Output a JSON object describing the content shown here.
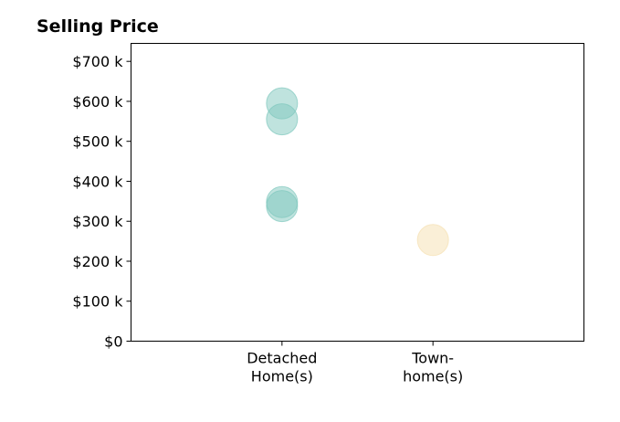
{
  "chart_data": {
    "type": "scatter",
    "title": "Selling Price",
    "xlabel": "",
    "ylabel": "",
    "categories": [
      {
        "lines": [
          "Detached",
          "Home(s)"
        ]
      },
      {
        "lines": [
          "Town-",
          "home(s)"
        ]
      }
    ],
    "xlim": [
      -1,
      2
    ],
    "ylim": [
      0,
      745000
    ],
    "yticks": [
      {
        "value": 0,
        "label": "$0"
      },
      {
        "value": 100000,
        "label": "$100 k"
      },
      {
        "value": 200000,
        "label": "$200 k"
      },
      {
        "value": 300000,
        "label": "$300 k"
      },
      {
        "value": 400000,
        "label": "$400 k"
      },
      {
        "value": 500000,
        "label": "$500 k"
      },
      {
        "value": 600000,
        "label": "$600 k"
      },
      {
        "value": 700000,
        "label": "$700 k"
      }
    ],
    "grid": false,
    "series": [
      {
        "color": "#7fc7bd",
        "points": [
          [
            0,
            595000
          ],
          [
            0,
            555000
          ],
          [
            0,
            348000
          ],
          [
            0,
            338000
          ]
        ]
      },
      {
        "color": "#f5dfb0",
        "points": [
          [
            1,
            253000
          ]
        ]
      }
    ]
  }
}
